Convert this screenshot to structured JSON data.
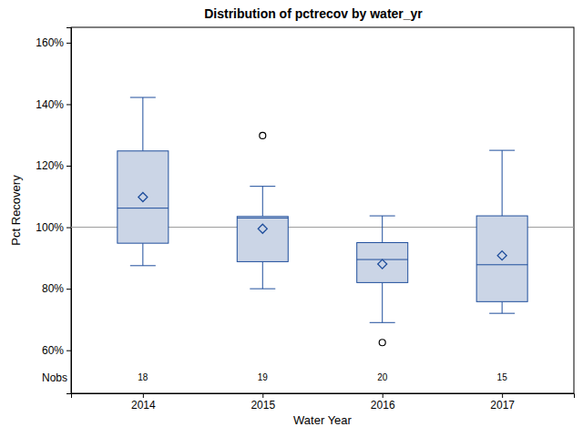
{
  "chart_data": {
    "type": "box",
    "title": "Distribution of pctrecov by water_yr",
    "x_label": "Water Year",
    "y_label": "Pct Recovery",
    "categories": [
      "2014",
      "2015",
      "2016",
      "2017"
    ],
    "whisker_low": [
      87.5,
      80,
      69,
      72
    ],
    "q1": [
      94.8,
      88.8,
      82,
      75.8
    ],
    "median": [
      106.2,
      103,
      89.5,
      87.8
    ],
    "q3": [
      124.8,
      103.5,
      95,
      103.7
    ],
    "whisker_high": [
      142.2,
      113.3,
      103.7,
      125
    ],
    "mean": [
      109.8,
      99.5,
      88,
      90.8
    ],
    "outliers": [
      [],
      [
        129.8
      ],
      [
        62.5
      ],
      []
    ],
    "nobs_label": "Nobs",
    "nobs": [
      18,
      19,
      20,
      15
    ],
    "reference_line": 100,
    "color": "#cbd5e6",
    "ylim": [
      46,
      165
    ],
    "yticks": [
      {
        "value": 60,
        "label": "60%"
      },
      {
        "value": 80,
        "label": "80%"
      },
      {
        "value": 100,
        "label": "100%"
      },
      {
        "value": 120,
        "label": "120%"
      },
      {
        "value": 140,
        "label": "140%"
      },
      {
        "value": 160,
        "label": "160%"
      }
    ],
    "grid": false
  }
}
